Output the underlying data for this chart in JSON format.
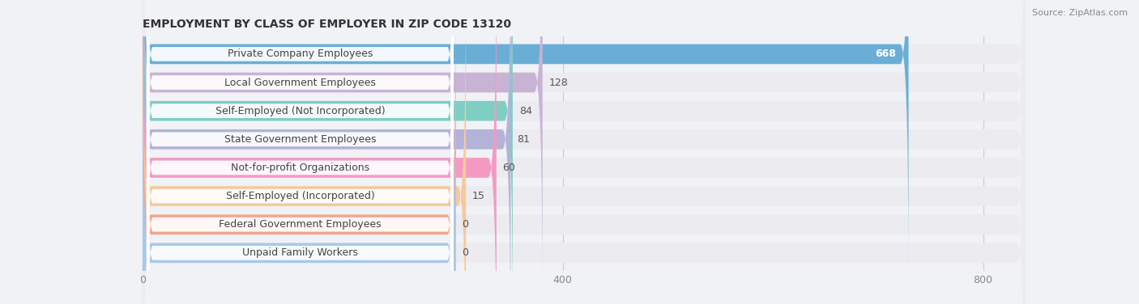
{
  "title": "EMPLOYMENT BY CLASS OF EMPLOYER IN ZIP CODE 13120",
  "source": "Source: ZipAtlas.com",
  "categories": [
    "Private Company Employees",
    "Local Government Employees",
    "Self-Employed (Not Incorporated)",
    "State Government Employees",
    "Not-for-profit Organizations",
    "Self-Employed (Incorporated)",
    "Federal Government Employees",
    "Unpaid Family Workers"
  ],
  "values": [
    668,
    128,
    84,
    81,
    60,
    15,
    0,
    0
  ],
  "bar_colors": [
    "#6aaed6",
    "#c9b3d5",
    "#7ecec4",
    "#b3b3d9",
    "#f49ac2",
    "#f7c99a",
    "#f4a58a",
    "#a8c8e8"
  ],
  "row_bg_color": "#ebebf0",
  "label_bg_color": "#ffffff",
  "xlim_max": 840,
  "xticks": [
    0,
    400,
    800
  ],
  "title_fontsize": 10,
  "label_fontsize": 9,
  "value_fontsize": 9,
  "source_fontsize": 8,
  "background_color": "#f0f2f5"
}
